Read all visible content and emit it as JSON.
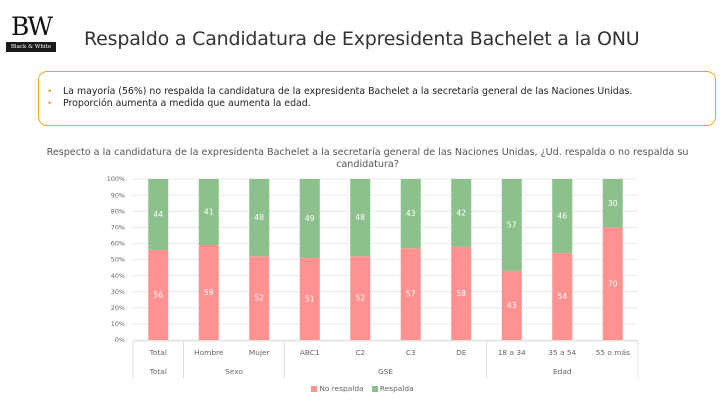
{
  "header": {
    "logo_main": "BW",
    "logo_sub": "Black & White",
    "title": "Respaldo a Candidatura de Expresidenta Bachelet a la ONU"
  },
  "callout": {
    "bullets": [
      "La mayoría (56%) no respalda la candidatura de la expresidenta Bachelet a la secretaría general de las Naciones Unidas.",
      "Proporción aumenta a medida que aumenta la edad."
    ],
    "bullet_glyph": "•",
    "border_color": "#f5a623"
  },
  "chart_data": {
    "type": "bar",
    "stacked": true,
    "percent": true,
    "title": "Respecto a la candidatura de la expresidenta Bachelet a la secretaría general de las Naciones Unidas, ¿Ud. respalda o no respalda su candidatura?",
    "xlabel": "",
    "ylabel": "",
    "ylim": [
      0,
      100
    ],
    "yticks": [
      "0%",
      "10%",
      "20%",
      "30%",
      "40%",
      "50%",
      "60%",
      "70%",
      "80%",
      "90%",
      "100%"
    ],
    "grid": true,
    "categories": [
      "Total",
      "Hombre",
      "Mujer",
      "ABC1",
      "C2",
      "C3",
      "DE",
      "18 a 34",
      "35 a 54",
      "55 o más"
    ],
    "groups": [
      {
        "label": "Total",
        "count": 1
      },
      {
        "label": "Sexo",
        "count": 2
      },
      {
        "label": "GSE",
        "count": 4
      },
      {
        "label": "Edad",
        "count": 3
      }
    ],
    "series": [
      {
        "name": "No respalda",
        "color": "#ff9191",
        "values": [
          56,
          59,
          52,
          51,
          52,
          57,
          58,
          43,
          54,
          70
        ]
      },
      {
        "name": "Respalda",
        "color": "#8cc08c",
        "values": [
          44,
          41,
          48,
          49,
          48,
          43,
          42,
          57,
          46,
          30
        ]
      }
    ],
    "legend_position": "bottom"
  }
}
